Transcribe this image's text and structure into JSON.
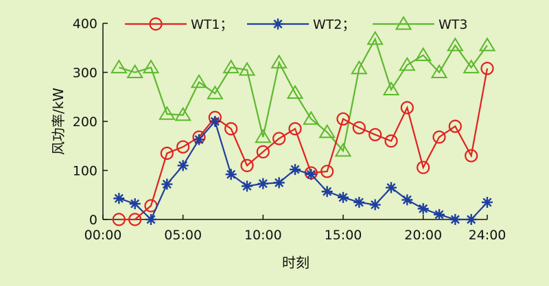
{
  "chart_data": {
    "type": "line",
    "xlabel": "时刻",
    "ylabel": "风功率/kW",
    "xlim": [
      0,
      24
    ],
    "ylim": [
      0,
      400
    ],
    "x_ticks": [
      {
        "value": 0,
        "label": "00:00"
      },
      {
        "value": 5,
        "label": "05:00"
      },
      {
        "value": 10,
        "label": "10:00"
      },
      {
        "value": 15,
        "label": "15:00"
      },
      {
        "value": 20,
        "label": "20:00"
      },
      {
        "value": 24,
        "label": "24:00"
      }
    ],
    "y_ticks": [
      0,
      100,
      200,
      300,
      400
    ],
    "grid": false,
    "legend_position": "top",
    "x": [
      1,
      2,
      3,
      4,
      5,
      6,
      7,
      8,
      9,
      10,
      11,
      12,
      13,
      14,
      15,
      16,
      17,
      18,
      19,
      20,
      21,
      22,
      23,
      24
    ],
    "series": [
      {
        "name": "WT1；",
        "color": "#e0201f",
        "marker": "circle",
        "values": [
          0,
          0,
          28,
          135,
          148,
          168,
          208,
          185,
          110,
          138,
          165,
          185,
          95,
          98,
          205,
          187,
          173,
          160,
          228,
          106,
          168,
          190,
          130,
          308
        ]
      },
      {
        "name": "WT2；",
        "color": "#1e3f9e",
        "marker": "asterisk",
        "values": [
          43,
          32,
          0,
          72,
          110,
          163,
          200,
          92,
          68,
          73,
          75,
          102,
          92,
          57,
          45,
          35,
          30,
          65,
          40,
          22,
          10,
          0,
          0,
          35
        ]
      },
      {
        "name": "WT3",
        "color": "#5cb82e",
        "marker": "triangle",
        "values": [
          310,
          300,
          310,
          215,
          213,
          280,
          257,
          310,
          305,
          168,
          320,
          258,
          205,
          178,
          140,
          308,
          368,
          265,
          315,
          335,
          300,
          355,
          310,
          355
        ]
      }
    ]
  }
}
